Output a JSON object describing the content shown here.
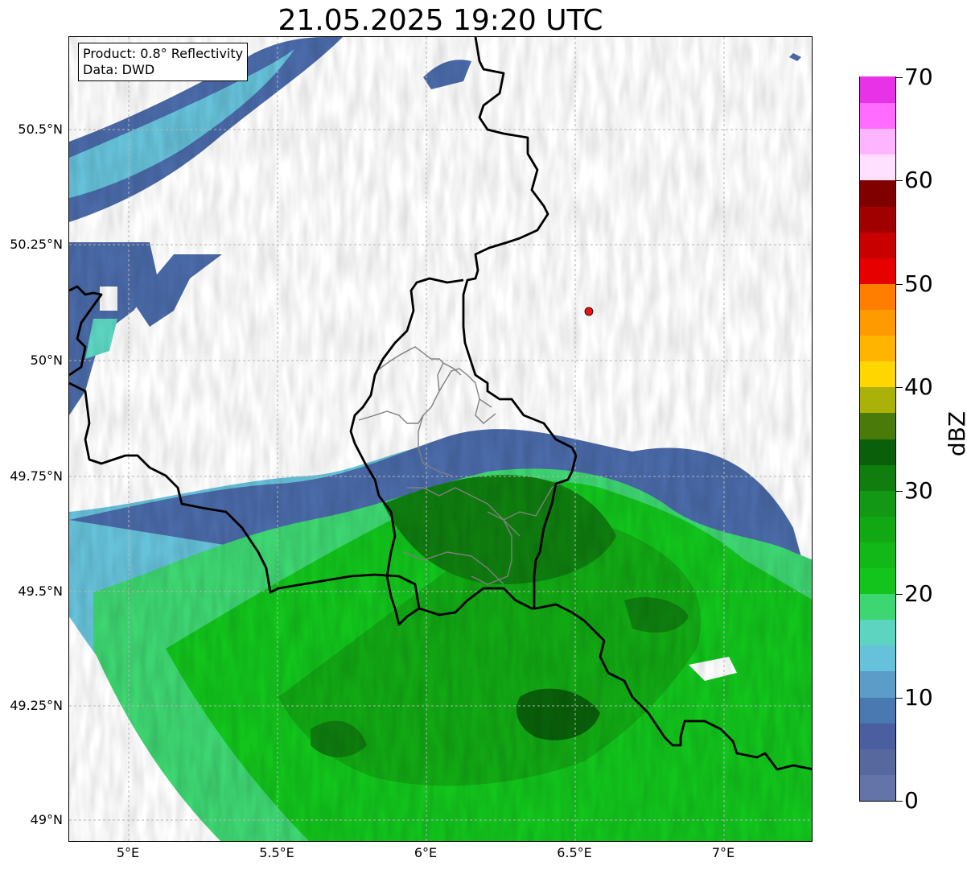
{
  "title": "21.05.2025 19:20 UTC",
  "info_box": {
    "line1": "Product: 0.8° Reflectivity",
    "line2": "Data: DWD"
  },
  "map": {
    "lon_range": [
      4.8,
      7.3
    ],
    "lat_range": [
      48.95,
      50.7
    ],
    "x_ticks": [
      {
        "value": 5.0,
        "label": "5°E"
      },
      {
        "value": 5.5,
        "label": "5.5°E"
      },
      {
        "value": 6.0,
        "label": "6°E"
      },
      {
        "value": 6.5,
        "label": "6.5°E"
      },
      {
        "value": 7.0,
        "label": "7°E"
      }
    ],
    "y_ticks": [
      {
        "value": 50.5,
        "label": "50.5°N"
      },
      {
        "value": 50.25,
        "label": "50.25°N"
      },
      {
        "value": 50.0,
        "label": "50°N"
      },
      {
        "value": 49.75,
        "label": "49.75°N"
      },
      {
        "value": 49.5,
        "label": "49.5°N"
      },
      {
        "value": 49.25,
        "label": "49.25°N"
      },
      {
        "value": 49.0,
        "label": "49°N"
      }
    ],
    "grid": true,
    "radar_site": {
      "lon": 6.55,
      "lat": 50.11,
      "color": "#ee1111"
    }
  },
  "colorbar": {
    "label": "dBZ",
    "min": 0,
    "max": 70,
    "ticks": [
      {
        "value": 0,
        "label": "0"
      },
      {
        "value": 10,
        "label": "10"
      },
      {
        "value": 20,
        "label": "20"
      },
      {
        "value": 30,
        "label": "30"
      },
      {
        "value": 40,
        "label": "40"
      },
      {
        "value": 50,
        "label": "50"
      },
      {
        "value": 60,
        "label": "60"
      },
      {
        "value": 70,
        "label": "70"
      }
    ],
    "colors": [
      "#6574a8",
      "#56689e",
      "#4a5ea0",
      "#4a78b0",
      "#5c9cc8",
      "#66c2da",
      "#5cd4c0",
      "#3ed672",
      "#12c41c",
      "#12b818",
      "#12a814",
      "#129814",
      "#0f7e0f",
      "#0a600a",
      "#4a7a0a",
      "#aab20a",
      "#ffd600",
      "#ffb400",
      "#ff9a00",
      "#ff7e00",
      "#e60000",
      "#c80000",
      "#a00000",
      "#800000",
      "#ffe0ff",
      "#ffb4ff",
      "#ff6cff",
      "#e832e8"
    ]
  }
}
